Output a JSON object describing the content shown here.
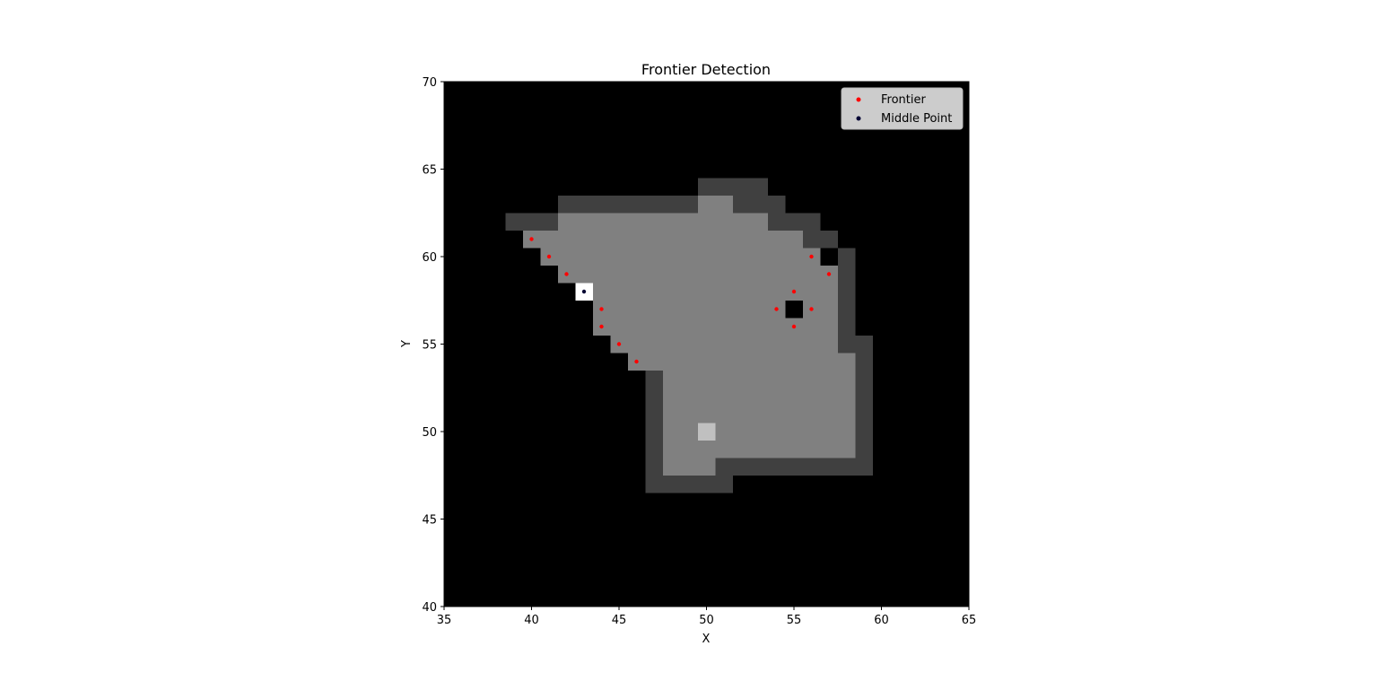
{
  "chart_data": {
    "type": "scatter",
    "title": "Frontier Detection",
    "xlabel": "X",
    "ylabel": "Y",
    "xlim": [
      35,
      65
    ],
    "ylim": [
      40,
      70
    ],
    "xticks": [
      35,
      40,
      45,
      50,
      55,
      60,
      65
    ],
    "yticks": [
      40,
      45,
      50,
      55,
      60,
      65,
      70
    ],
    "grid": false,
    "legend_position": "top-right",
    "background_map": {
      "description_levels": {
        "0": "unknown",
        "1": "wall",
        "2": "free",
        "3": "visited",
        "4": "selected"
      },
      "colors": {
        "0": "#000000",
        "1": "#404040",
        "2": "#808080",
        "3": "#c0c0c0",
        "4": "#ffffff"
      },
      "row_runs": [
        {
          "y": 47,
          "runs": [
            [
              47,
              51,
              1
            ]
          ]
        },
        {
          "y": 48,
          "runs": [
            [
              47,
              47,
              1
            ],
            [
              48,
              50,
              2
            ],
            [
              51,
              59,
              1
            ]
          ]
        },
        {
          "y": 49,
          "runs": [
            [
              47,
              47,
              1
            ],
            [
              48,
              58,
              2
            ],
            [
              59,
              59,
              1
            ]
          ]
        },
        {
          "y": 50,
          "runs": [
            [
              47,
              47,
              1
            ],
            [
              48,
              49,
              2
            ],
            [
              50,
              50,
              3
            ],
            [
              51,
              58,
              2
            ],
            [
              59,
              59,
              1
            ]
          ]
        },
        {
          "y": 51,
          "runs": [
            [
              47,
              47,
              1
            ],
            [
              48,
              58,
              2
            ],
            [
              59,
              59,
              1
            ]
          ]
        },
        {
          "y": 52,
          "runs": [
            [
              47,
              47,
              1
            ],
            [
              48,
              58,
              2
            ],
            [
              59,
              59,
              1
            ]
          ]
        },
        {
          "y": 53,
          "runs": [
            [
              47,
              47,
              1
            ],
            [
              48,
              58,
              2
            ],
            [
              59,
              59,
              1
            ]
          ]
        },
        {
          "y": 54,
          "runs": [
            [
              46,
              58,
              2
            ],
            [
              59,
              59,
              1
            ]
          ]
        },
        {
          "y": 55,
          "runs": [
            [
              45,
              57,
              2
            ],
            [
              58,
              59,
              1
            ]
          ]
        },
        {
          "y": 56,
          "runs": [
            [
              44,
              57,
              2
            ],
            [
              58,
              58,
              1
            ]
          ]
        },
        {
          "y": 57,
          "runs": [
            [
              44,
              54,
              2
            ],
            [
              55,
              55,
              0
            ],
            [
              56,
              57,
              2
            ],
            [
              58,
              58,
              1
            ]
          ]
        },
        {
          "y": 58,
          "runs": [
            [
              43,
              43,
              4
            ],
            [
              44,
              57,
              2
            ],
            [
              58,
              58,
              1
            ]
          ]
        },
        {
          "y": 59,
          "runs": [
            [
              42,
              57,
              2
            ],
            [
              58,
              58,
              1
            ]
          ]
        },
        {
          "y": 60,
          "runs": [
            [
              41,
              56,
              2
            ],
            [
              57,
              57,
              0
            ],
            [
              58,
              58,
              1
            ]
          ]
        },
        {
          "y": 61,
          "runs": [
            [
              40,
              55,
              2
            ],
            [
              56,
              57,
              1
            ]
          ]
        },
        {
          "y": 62,
          "runs": [
            [
              39,
              41,
              1
            ],
            [
              42,
              53,
              2
            ],
            [
              54,
              56,
              1
            ]
          ]
        },
        {
          "y": 63,
          "runs": [
            [
              42,
              49,
              1
            ],
            [
              50,
              51,
              2
            ],
            [
              52,
              54,
              1
            ]
          ]
        },
        {
          "y": 64,
          "runs": [
            [
              50,
              53,
              1
            ]
          ]
        }
      ]
    },
    "series": [
      {
        "name": "Frontier",
        "color": "#ff0000",
        "points": [
          [
            40,
            61
          ],
          [
            41,
            60
          ],
          [
            42,
            59
          ],
          [
            44,
            57
          ],
          [
            44,
            56
          ],
          [
            45,
            55
          ],
          [
            46,
            54
          ],
          [
            56,
            60
          ],
          [
            57,
            59
          ],
          [
            55,
            58
          ],
          [
            54,
            57
          ],
          [
            56,
            57
          ],
          [
            55,
            56
          ]
        ]
      },
      {
        "name": "Middle Point",
        "color": "#000033",
        "points": [
          [
            43,
            58
          ]
        ]
      }
    ]
  }
}
